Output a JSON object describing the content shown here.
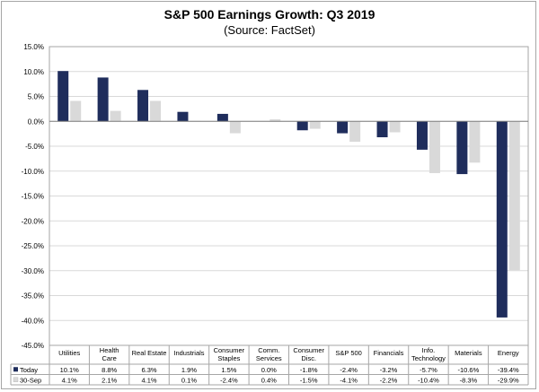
{
  "chart_data": {
    "type": "bar",
    "title": "S&P 500 Earnings Growth: Q3 2019",
    "subtitle": "(Source: FactSet)",
    "categories": [
      [
        "Utilities"
      ],
      [
        "Health",
        "Care"
      ],
      [
        "Real Estate"
      ],
      [
        "Industrials"
      ],
      [
        "Consumer",
        "Staples"
      ],
      [
        "Comm.",
        "Services"
      ],
      [
        "Consumer",
        "Disc."
      ],
      [
        "S&P 500"
      ],
      [
        "Financials"
      ],
      [
        "Info.",
        "Technology"
      ],
      [
        "Materials"
      ],
      [
        "Energy"
      ]
    ],
    "series": [
      {
        "name": "Today",
        "color": "#1f2d5c",
        "values": [
          10.1,
          8.8,
          6.3,
          1.9,
          1.5,
          0.0,
          -1.8,
          -2.4,
          -3.2,
          -5.7,
          -10.6,
          -39.4
        ],
        "labels": [
          "10.1%",
          "8.8%",
          "6.3%",
          "1.9%",
          "1.5%",
          "0.0%",
          "-1.8%",
          "-2.4%",
          "-3.2%",
          "-5.7%",
          "-10.6%",
          "-39.4%"
        ]
      },
      {
        "name": "30-Sep",
        "color": "#d9d9d9",
        "values": [
          4.1,
          2.1,
          4.1,
          0.1,
          -2.4,
          0.4,
          -1.5,
          -4.1,
          -2.2,
          -10.4,
          -8.3,
          -29.9
        ],
        "labels": [
          "4.1%",
          "2.1%",
          "4.1%",
          "0.1%",
          "-2.4%",
          "0.4%",
          "-1.5%",
          "-4.1%",
          "-2.2%",
          "-10.4%",
          "-8.3%",
          "-29.9%"
        ]
      }
    ],
    "ylim": [
      -45,
      15
    ],
    "yticks": [
      15,
      10,
      5,
      0,
      -5,
      -10,
      -15,
      -20,
      -25,
      -30,
      -35,
      -40,
      -45
    ],
    "ytick_labels": [
      "15.0%",
      "10.0%",
      "5.0%",
      "0.0%",
      "-5.0%",
      "-10.0%",
      "-15.0%",
      "-20.0%",
      "-25.0%",
      "-30.0%",
      "-35.0%",
      "-40.0%",
      "-45.0%"
    ],
    "grid": true,
    "legend": "data-table"
  }
}
